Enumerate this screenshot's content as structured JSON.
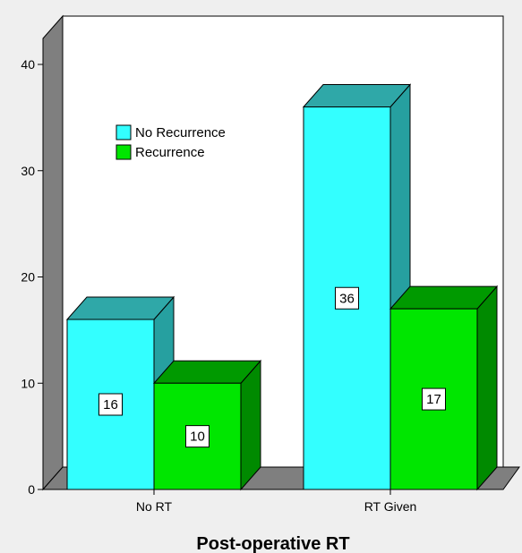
{
  "chart_data": {
    "type": "bar",
    "style": "3d-clustered",
    "categories": [
      "No RT",
      "RT Given"
    ],
    "series": [
      {
        "name": "No Recurrence",
        "values": [
          16,
          36
        ],
        "color": "#33ffff",
        "side_color": "#26a0a0",
        "top_color": "#2fa8a8"
      },
      {
        "name": "Recurrence",
        "values": [
          10,
          17
        ],
        "color": "#00e600",
        "side_color": "#008a00",
        "top_color": "#009a00"
      }
    ],
    "xlabel": "Post-operative RT",
    "ylabel": "",
    "ylim": [
      0,
      40
    ],
    "yticks": [
      0,
      10,
      20,
      30,
      40
    ],
    "legend_position": "upper-left inside plot",
    "data_labels": true,
    "grid": false,
    "plot_background": "#ffffff",
    "wall_color": "#7f7f7f",
    "page_background": "#efefef"
  }
}
